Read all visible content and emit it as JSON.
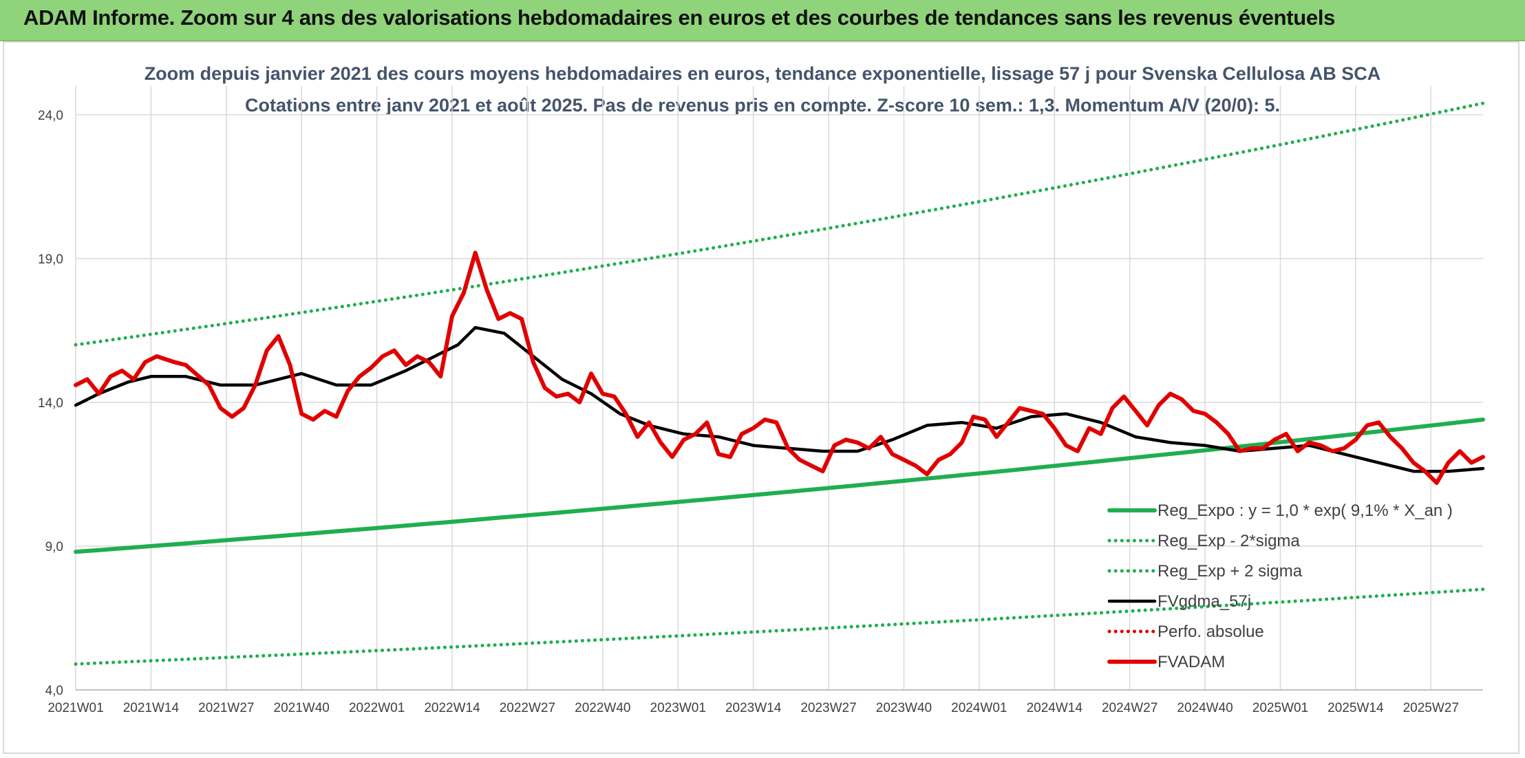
{
  "header": {
    "banner_title": "ADAM Informe. Zoom sur 4 ans des valorisations hebdomadaires en euros et des courbes de tendances sans les revenus éventuels"
  },
  "chart_data": {
    "type": "line",
    "title": "Zoom depuis janvier 2021 des cours moyens hebdomadaires en euros, tendance exponentielle, lissage 57 j pour Svenska Cellulosa AB SCA",
    "subtitle": "Cotations entre janv 2021 et août 2025. Pas de revenus pris en compte. Z-score 10 sem.: 1,3. Momentum A/V (20/0): 5.",
    "xlabel": "",
    "ylabel": "",
    "ylim": [
      4.0,
      25.0
    ],
    "yticks": [
      "4,0",
      "9,0",
      "14,0",
      "19,0",
      "24,0"
    ],
    "ytick_values": [
      4,
      9,
      14,
      19,
      24
    ],
    "xlim": [
      1,
      244
    ],
    "xticks": [
      "2021W01",
      "2021W14",
      "2021W27",
      "2021W40",
      "2022W01",
      "2022W14",
      "2022W27",
      "2022W40",
      "2023W01",
      "2023W14",
      "2023W27",
      "2023W40",
      "2024W01",
      "2024W14",
      "2024W27",
      "2024W40",
      "2025W01",
      "2025W14",
      "2025W27"
    ],
    "xtick_positions": [
      1,
      14,
      27,
      40,
      53,
      66,
      79,
      92,
      105,
      118,
      131,
      144,
      157,
      170,
      183,
      196,
      209,
      222,
      235
    ],
    "grid": true,
    "legend_position": "bottom-right",
    "series": [
      {
        "name": "Reg_Expo : y = 1,0 * exp( 9,1% *  X_an )",
        "style": "solid-thick",
        "color": "#1fae50",
        "x": [
          1,
          244
        ],
        "values": [
          8.8,
          13.4
        ]
      },
      {
        "name": "Reg_Exp - 2*sigma",
        "style": "dotted",
        "color": "#1fae50",
        "x": [
          1,
          244
        ],
        "values": [
          4.9,
          7.5
        ]
      },
      {
        "name": "Reg_Exp + 2 sigma",
        "style": "dotted",
        "color": "#1fae50",
        "x": [
          1,
          244
        ],
        "values": [
          16.0,
          24.4
        ]
      },
      {
        "name": "FVgdma_57j",
        "style": "solid",
        "color": "#000000",
        "x": [
          1,
          5,
          10,
          14,
          20,
          26,
          32,
          40,
          46,
          52,
          58,
          63,
          67,
          70,
          75,
          80,
          85,
          90,
          95,
          100,
          106,
          112,
          118,
          124,
          130,
          136,
          142,
          148,
          154,
          160,
          166,
          172,
          178,
          184,
          190,
          196,
          202,
          208,
          214,
          220,
          226,
          232,
          238,
          244
        ],
        "values": [
          13.9,
          14.3,
          14.7,
          14.9,
          14.9,
          14.6,
          14.6,
          15.0,
          14.6,
          14.6,
          15.1,
          15.6,
          16.0,
          16.6,
          16.4,
          15.6,
          14.8,
          14.3,
          13.6,
          13.2,
          12.9,
          12.8,
          12.5,
          12.4,
          12.3,
          12.3,
          12.7,
          13.2,
          13.3,
          13.1,
          13.5,
          13.6,
          13.3,
          12.8,
          12.6,
          12.5,
          12.3,
          12.4,
          12.5,
          12.2,
          11.9,
          11.6,
          11.6,
          11.7
        ]
      },
      {
        "name": "Perfo. absolue",
        "style": "dotted",
        "color": "#e00000",
        "x": [],
        "values": []
      },
      {
        "name": "FVADAM",
        "style": "solid-thick",
        "color": "#e00000",
        "x": [
          1,
          3,
          5,
          7,
          9,
          11,
          13,
          15,
          18,
          20,
          24,
          26,
          28,
          30,
          32,
          34,
          36,
          38,
          40,
          42,
          44,
          46,
          48,
          50,
          52,
          54,
          56,
          58,
          60,
          62,
          64,
          66,
          68,
          70,
          72,
          74,
          76,
          78,
          80,
          82,
          84,
          86,
          88,
          90,
          92,
          94,
          96,
          98,
          100,
          102,
          104,
          106,
          108,
          110,
          112,
          114,
          116,
          118,
          120,
          122,
          124,
          126,
          128,
          130,
          132,
          134,
          136,
          138,
          140,
          142,
          144,
          146,
          148,
          150,
          152,
          154,
          156,
          158,
          160,
          162,
          164,
          166,
          168,
          170,
          172,
          174,
          176,
          178,
          180,
          182,
          184,
          186,
          188,
          190,
          192,
          194,
          196,
          198,
          200,
          202,
          204,
          206,
          208,
          210,
          212,
          214,
          216,
          218,
          220,
          222,
          224,
          226,
          228,
          230,
          232,
          234,
          236,
          238,
          240,
          242,
          244
        ],
        "values": [
          14.6,
          14.8,
          14.3,
          14.9,
          15.1,
          14.8,
          15.4,
          15.6,
          15.4,
          15.3,
          14.6,
          13.8,
          13.5,
          13.8,
          14.6,
          15.8,
          16.3,
          15.3,
          13.6,
          13.4,
          13.7,
          13.5,
          14.4,
          14.9,
          15.2,
          15.6,
          15.8,
          15.3,
          15.6,
          15.4,
          14.9,
          17.0,
          17.8,
          19.2,
          17.9,
          16.9,
          17.1,
          16.9,
          15.4,
          14.5,
          14.2,
          14.3,
          14.0,
          15.0,
          14.3,
          14.2,
          13.6,
          12.8,
          13.3,
          12.6,
          12.1,
          12.7,
          12.9,
          13.3,
          12.2,
          12.1,
          12.9,
          13.1,
          13.4,
          13.3,
          12.4,
          12.0,
          11.8,
          11.6,
          12.5,
          12.7,
          12.6,
          12.4,
          12.8,
          12.2,
          12.0,
          11.8,
          11.5,
          12.0,
          12.2,
          12.6,
          13.5,
          13.4,
          12.8,
          13.3,
          13.8,
          13.7,
          13.6,
          13.1,
          12.5,
          12.3,
          13.1,
          12.9,
          13.8,
          14.2,
          13.7,
          13.2,
          13.9,
          14.3,
          14.1,
          13.7,
          13.6,
          13.3,
          12.9,
          12.3,
          12.4,
          12.4,
          12.7,
          12.9,
          12.3,
          12.6,
          12.5,
          12.3,
          12.4,
          12.7,
          13.2,
          13.3,
          12.8,
          12.4,
          11.9,
          11.6,
          11.2,
          11.9,
          12.3,
          11.9,
          12.1
        ]
      }
    ]
  }
}
